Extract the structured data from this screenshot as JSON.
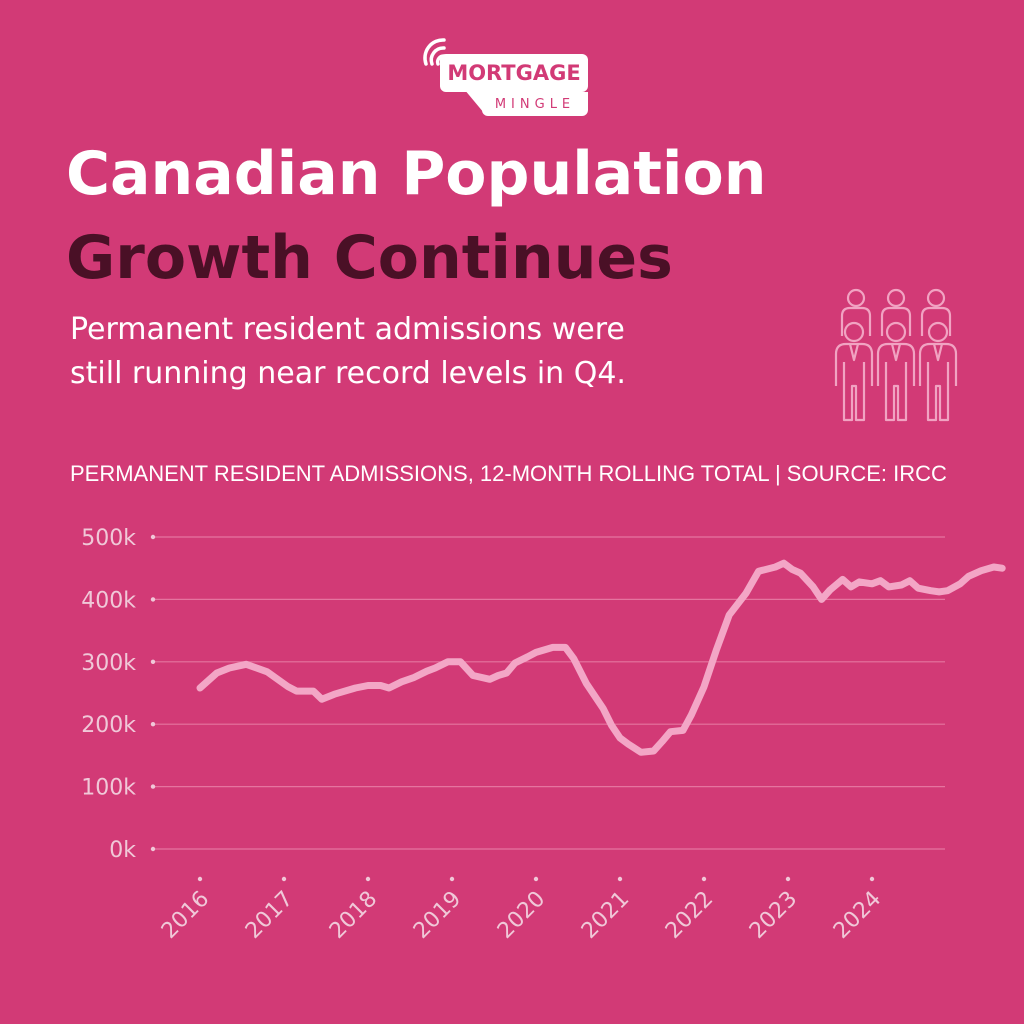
{
  "brand": {
    "name_top": "MORTGAGE",
    "name_bottom": "MINGLE",
    "logo_icon": "wifi-speech-bubble-icon"
  },
  "headline": {
    "line1": "Canadian Population",
    "line2": "Growth Continues"
  },
  "subtitle": {
    "line1": "Permanent resident admissions were",
    "line2": "still running near record levels in Q4."
  },
  "decorative_icon": "people-group-icon",
  "chart_caption": "PERMANENT RESIDENT ADMISSIONS, 12-MONTH ROLLING TOTAL | SOURCE: IRCC",
  "colors": {
    "background": "#d23a76",
    "title_light": "#ffffff",
    "title_dark": "#4a1026",
    "line": "#f3a6c6",
    "grid": "#e5749f",
    "tick_label": "#f0c8d8"
  },
  "chart_data": {
    "type": "line",
    "title": "PERMANENT RESIDENT ADMISSIONS, 12-MONTH ROLLING TOTAL | SOURCE: IRCC",
    "xlabel": "",
    "ylabel": "",
    "ylim": [
      0,
      500000
    ],
    "yticks": [
      0,
      100000,
      200000,
      300000,
      400000,
      500000
    ],
    "ytick_labels": [
      "0k",
      "100k",
      "200k",
      "300k",
      "400k",
      "500k"
    ],
    "xticks": [
      2016,
      2017,
      2018,
      2019,
      2020,
      2021,
      2022,
      2023,
      2024
    ],
    "xtick_labels": [
      "2016",
      "2017",
      "2018",
      "2019",
      "2020",
      "2021",
      "2022",
      "2023",
      "2024"
    ],
    "grid": true,
    "legend": "none",
    "series": [
      {
        "values_by_time": [
          [
            2016.0,
            258000
          ],
          [
            2016.1,
            270000
          ],
          [
            2016.2,
            282000
          ],
          [
            2016.35,
            290000
          ],
          [
            2016.55,
            296000
          ],
          [
            2016.8,
            284000
          ],
          [
            2017.05,
            260000
          ],
          [
            2017.15,
            253000
          ],
          [
            2017.35,
            253000
          ],
          [
            2017.45,
            240000
          ],
          [
            2017.6,
            248000
          ],
          [
            2017.85,
            258000
          ],
          [
            2018.0,
            262000
          ],
          [
            2018.15,
            262000
          ],
          [
            2018.25,
            258000
          ],
          [
            2018.4,
            268000
          ],
          [
            2018.55,
            275000
          ],
          [
            2018.7,
            285000
          ],
          [
            2018.8,
            290000
          ],
          [
            2018.95,
            300000
          ],
          [
            2019.1,
            300000
          ],
          [
            2019.25,
            278000
          ],
          [
            2019.45,
            272000
          ],
          [
            2019.55,
            278000
          ],
          [
            2019.65,
            282000
          ],
          [
            2019.75,
            298000
          ],
          [
            2019.9,
            308000
          ],
          [
            2020.0,
            315000
          ],
          [
            2020.2,
            323000
          ],
          [
            2020.35,
            323000
          ],
          [
            2020.45,
            305000
          ],
          [
            2020.6,
            265000
          ],
          [
            2020.8,
            225000
          ],
          [
            2020.9,
            198000
          ],
          [
            2021.0,
            178000
          ],
          [
            2021.1,
            168000
          ],
          [
            2021.25,
            155000
          ],
          [
            2021.4,
            157000
          ],
          [
            2021.5,
            172000
          ],
          [
            2021.6,
            188000
          ],
          [
            2021.75,
            190000
          ],
          [
            2021.85,
            215000
          ],
          [
            2022.0,
            260000
          ],
          [
            2022.15,
            320000
          ],
          [
            2022.3,
            375000
          ],
          [
            2022.5,
            410000
          ],
          [
            2022.65,
            445000
          ],
          [
            2022.85,
            452000
          ],
          [
            2022.95,
            458000
          ],
          [
            2023.05,
            448000
          ],
          [
            2023.15,
            442000
          ],
          [
            2023.3,
            420000
          ],
          [
            2023.4,
            400000
          ],
          [
            2023.5,
            415000
          ],
          [
            2023.65,
            432000
          ],
          [
            2023.75,
            420000
          ],
          [
            2023.85,
            428000
          ],
          [
            2024.0,
            425000
          ],
          [
            2024.1,
            430000
          ],
          [
            2024.2,
            420000
          ],
          [
            2024.35,
            423000
          ],
          [
            2024.45,
            430000
          ],
          [
            2024.55,
            418000
          ],
          [
            2024.7,
            414000
          ],
          [
            2024.8,
            412000
          ],
          [
            2024.9,
            414000
          ],
          [
            2025.05,
            425000
          ],
          [
            2025.15,
            437000
          ],
          [
            2025.3,
            446000
          ],
          [
            2025.45,
            452000
          ],
          [
            2025.55,
            450000
          ]
        ]
      }
    ]
  }
}
